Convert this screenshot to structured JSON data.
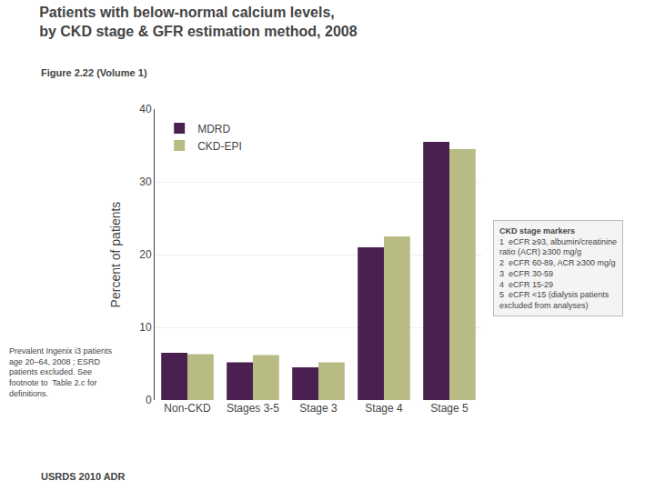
{
  "chart_data": {
    "type": "bar",
    "title": "Patients with below-normal calcium levels,\nby CKD stage & GFR estimation method, 2008",
    "subtitle": "Figure 2.22 (Volume 1)",
    "ylabel": "Percent of patients",
    "categories": [
      "Non-CKD",
      "Stages 3-5",
      "Stage 3",
      "Stage 4",
      "Stage 5"
    ],
    "series": [
      {
        "name": "MDRD",
        "color": "#4a2050",
        "values": [
          6.5,
          5.2,
          4.5,
          21.0,
          35.5
        ]
      },
      {
        "name": "CKD-EPI",
        "color": "#b8bc84",
        "values": [
          6.3,
          6.2,
          5.2,
          22.5,
          34.5
        ]
      }
    ],
    "ylim": [
      0,
      40
    ],
    "yticks": [
      0,
      10,
      20,
      30,
      40
    ],
    "grid": true,
    "legend": "upper left",
    "annotations": [
      "Prevalent Ingenix i3 patients\nage 20–64, 2008 ; ESRD\npatients excluded. See\nfootnote to  Table 2.c for\ndefinitions.",
      "USRDS 2010 ADR",
      "CKD stage markers",
      "1  eCFR ≥93, albumin/creatinine\nratio (ACR) ≥300 mg/g",
      "2  eCFR 60-89, ACR ≥300 mg/g",
      "3  eCFR 30-59",
      "4  eCFR 15-29",
      "5  eCFR <15 (dialysis patients\nexcluded from analyses)"
    ]
  }
}
